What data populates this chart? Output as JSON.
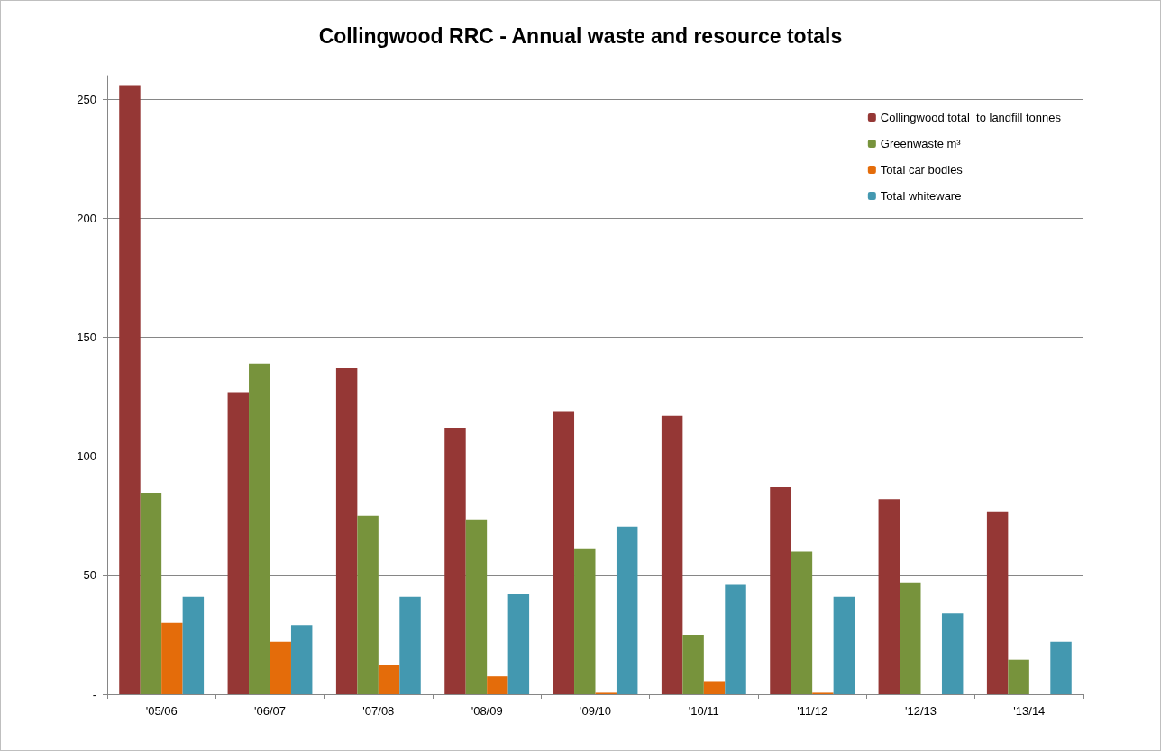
{
  "chart_data": {
    "type": "bar",
    "title": "Collingwood RRC - Annual waste and resource totals",
    "categories": [
      "'05/06",
      "'06/07",
      "'07/08",
      "'08/09",
      "'09/10",
      "'10/11",
      "'11/12",
      "'12/13",
      "'13/14"
    ],
    "series": [
      {
        "name": "Collingwood total  to landfill tonnes",
        "color": "#953735",
        "values": [
          256,
          127,
          137,
          112,
          119,
          117,
          87,
          82,
          76.5
        ]
      },
      {
        "name": "Greenwaste m³",
        "color": "#77933c",
        "values": [
          84.5,
          139,
          75,
          73.5,
          61,
          25,
          60,
          47,
          14.5
        ]
      },
      {
        "name": "Total car bodies",
        "color": "#e46c0a",
        "values": [
          30,
          22,
          12.5,
          7.5,
          0.6,
          5.5,
          0.6,
          null,
          null
        ]
      },
      {
        "name": "Total whiteware",
        "color": "#4398b0",
        "values": [
          41,
          29,
          41,
          42,
          70.5,
          46,
          41,
          34,
          22
        ]
      }
    ],
    "ylim": [
      0,
      260
    ],
    "yticks": [
      {
        "value": 0,
        "label": "-"
      },
      50,
      100,
      150,
      200,
      250
    ],
    "grid": "y",
    "legend": "top right"
  }
}
